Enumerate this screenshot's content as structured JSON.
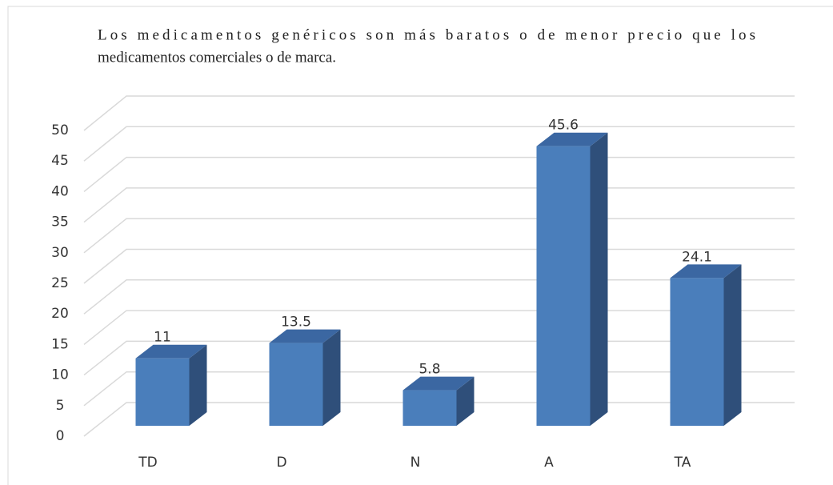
{
  "chart_data": {
    "type": "bar3d",
    "title": [
      "Los medicamentos genéricos son más baratos o de menor precio que los",
      "medicamentos comerciales o de marca."
    ],
    "categories": [
      "TD",
      "D",
      "N",
      "A",
      "TA"
    ],
    "values": [
      11,
      13.5,
      5.8,
      45.6,
      24.1
    ],
    "color": "#4a7ebb",
    "ylim": [
      0,
      50
    ],
    "yticks": [
      0,
      5,
      10,
      15,
      20,
      25,
      30,
      35,
      40,
      45,
      50
    ],
    "grid": true
  }
}
